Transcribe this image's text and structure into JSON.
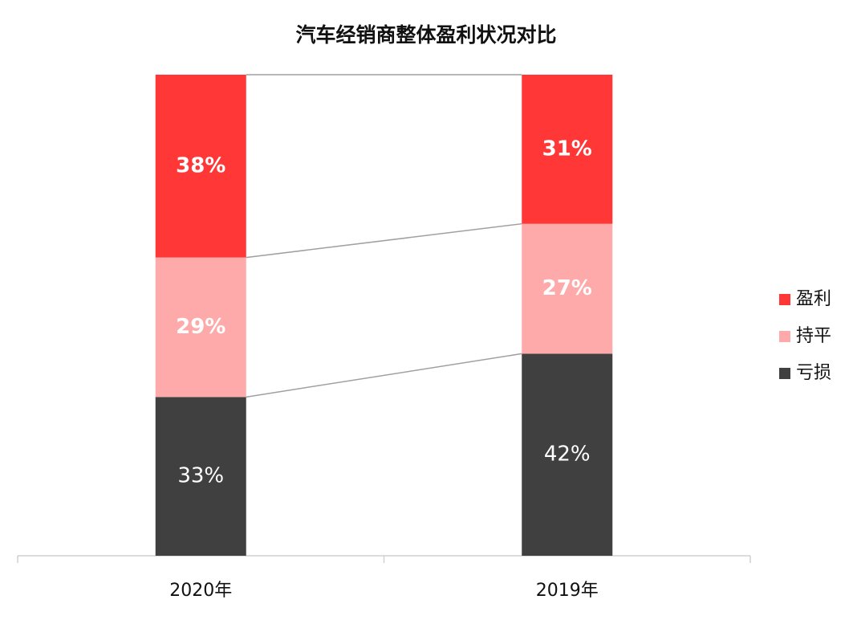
{
  "chart_data": {
    "type": "bar",
    "stacked": true,
    "title": "汽车经销商整体盈利状况对比",
    "categories": [
      "2020年",
      "2019年"
    ],
    "series": [
      {
        "name": "亏损",
        "color": "#404040",
        "values": [
          33,
          42
        ],
        "value_labels": [
          "33%",
          "42%"
        ]
      },
      {
        "name": "持平",
        "color": "#ffaaaa",
        "values": [
          29,
          27
        ],
        "value_labels": [
          "29%",
          "27%"
        ]
      },
      {
        "name": "盈利",
        "color": "#ff3737",
        "values": [
          38,
          31
        ],
        "value_labels": [
          "38%",
          "31%"
        ]
      }
    ],
    "ylim": [
      0,
      100
    ],
    "legend": "right"
  }
}
